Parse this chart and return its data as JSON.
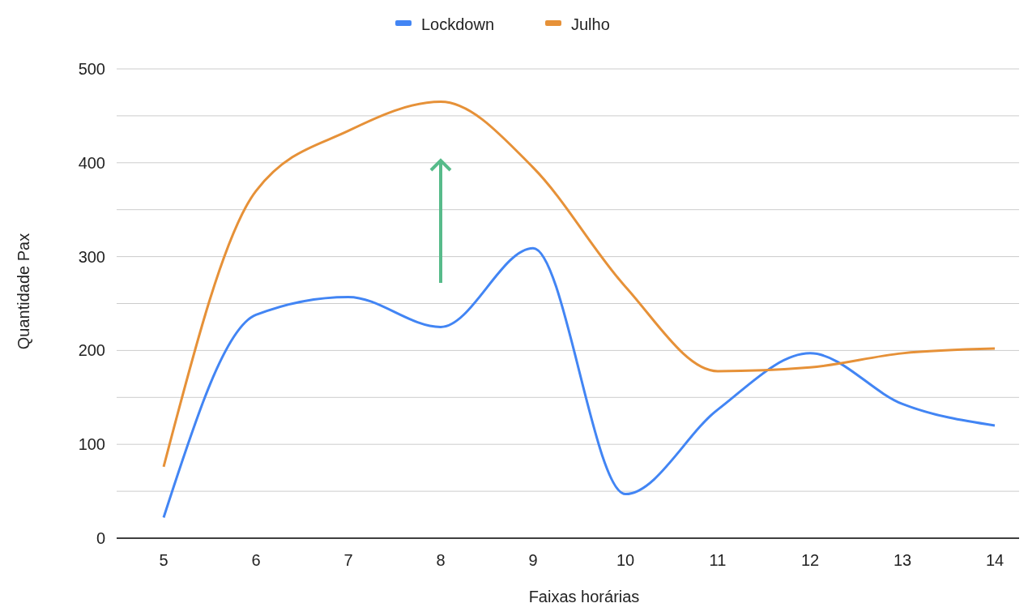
{
  "chart_data": {
    "type": "line",
    "xlabel": "Faixas horárias",
    "ylabel": "Quantidade Pax",
    "categories": [
      "5",
      "6",
      "7",
      "8",
      "9",
      "10",
      "11",
      "12",
      "13",
      "14"
    ],
    "series": [
      {
        "name": "Lockdown",
        "color": "#4285f4",
        "values": [
          22,
          238,
          257,
          225,
          309,
          47,
          137,
          197,
          143,
          120
        ]
      },
      {
        "name": "Julho",
        "color": "#e69138",
        "values": [
          76,
          370,
          434,
          465,
          395,
          268,
          178,
          182,
          197,
          202
        ]
      }
    ],
    "ylim": [
      0,
      500
    ],
    "yticks": [
      0,
      {
        "value": 50,
        "label": null
      },
      100,
      {
        "value": 150,
        "label": null
      },
      200,
      {
        "value": 250,
        "label": null
      },
      300,
      {
        "value": 350,
        "label": null
      },
      400,
      {
        "value": 450,
        "label": null
      },
      500
    ],
    "grid": "y",
    "legend": "top",
    "marker": "none",
    "line_style": "solid"
  }
}
